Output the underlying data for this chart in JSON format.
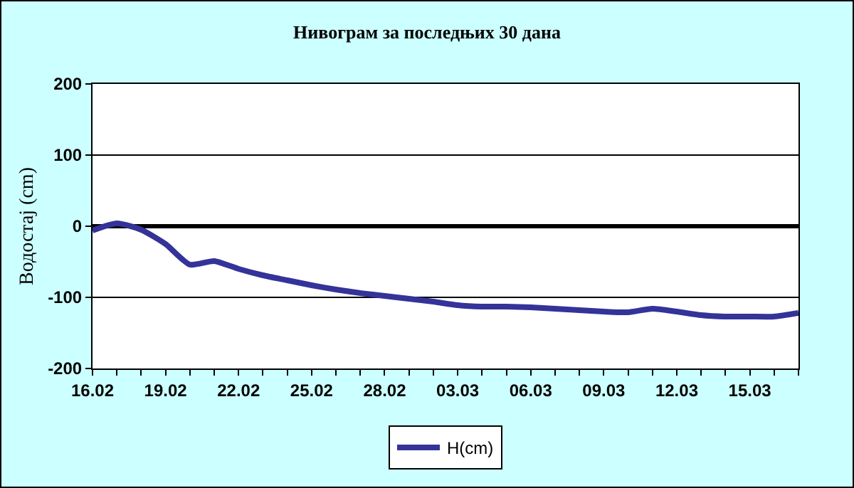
{
  "chart_data": {
    "type": "line",
    "title": "Нивограм за последњих 30 дана",
    "ylabel": "Водостај (cm)",
    "x": [
      "--02-16",
      "--02-17",
      "--02-18",
      "--02-19",
      "--02-20",
      "--02-21",
      "--02-22",
      "--02-23",
      "--02-24",
      "--02-25",
      "--02-26",
      "--02-27",
      "--02-28",
      "--03-01",
      "--03-02",
      "--03-03",
      "--03-04",
      "--03-05",
      "--03-06",
      "--03-07",
      "--03-08",
      "--03-09",
      "--03-10",
      "--03-11",
      "--03-12",
      "--03-13",
      "--03-14",
      "--03-15",
      "--03-16",
      "--03-17"
    ],
    "series": [
      {
        "name": "H(cm)",
        "color": "#333399",
        "values": [
          -6,
          4,
          -5,
          -25,
          -54,
          -49,
          -60,
          -69,
          -76,
          -83,
          -89,
          -94,
          -98,
          -102,
          -106,
          -111,
          -113,
          -113,
          -114,
          -116,
          -118,
          -120,
          -121,
          -116,
          -120,
          -125,
          -127,
          -127,
          -127,
          -122
        ]
      }
    ],
    "xlim": [
      "--02-16",
      "--03-17"
    ],
    "xticks": [
      {
        "value": "--02-16",
        "label": "16.02"
      },
      {
        "value": "--02-17",
        "label": null
      },
      {
        "value": "--02-18",
        "label": null
      },
      {
        "value": "--02-19",
        "label": "19.02"
      },
      {
        "value": "--02-20",
        "label": null
      },
      {
        "value": "--02-21",
        "label": null
      },
      {
        "value": "--02-22",
        "label": "22.02"
      },
      {
        "value": "--02-23",
        "label": null
      },
      {
        "value": "--02-24",
        "label": null
      },
      {
        "value": "--02-25",
        "label": "25.02"
      },
      {
        "value": "--02-26",
        "label": null
      },
      {
        "value": "--02-27",
        "label": null
      },
      {
        "value": "--02-28",
        "label": "28.02"
      },
      {
        "value": "--03-01",
        "label": null
      },
      {
        "value": "--03-02",
        "label": null
      },
      {
        "value": "--03-03",
        "label": "03.03"
      },
      {
        "value": "--03-04",
        "label": null
      },
      {
        "value": "--03-05",
        "label": null
      },
      {
        "value": "--03-06",
        "label": "06.03"
      },
      {
        "value": "--03-07",
        "label": null
      },
      {
        "value": "--03-08",
        "label": null
      },
      {
        "value": "--03-09",
        "label": "09.03"
      },
      {
        "value": "--03-10",
        "label": null
      },
      {
        "value": "--03-11",
        "label": null
      },
      {
        "value": "--03-12",
        "label": "12.03"
      },
      {
        "value": "--03-13",
        "label": null
      },
      {
        "value": "--03-14",
        "label": null
      },
      {
        "value": "--03-15",
        "label": "15.03"
      },
      {
        "value": "--03-16",
        "label": null
      },
      {
        "value": "--03-17",
        "label": null
      }
    ],
    "ylim": [
      -200,
      200
    ],
    "yticks": [
      -200,
      -100,
      0,
      100,
      200
    ],
    "grid": "y",
    "legend": "bottom",
    "marker": "none",
    "line_style": "solid"
  }
}
